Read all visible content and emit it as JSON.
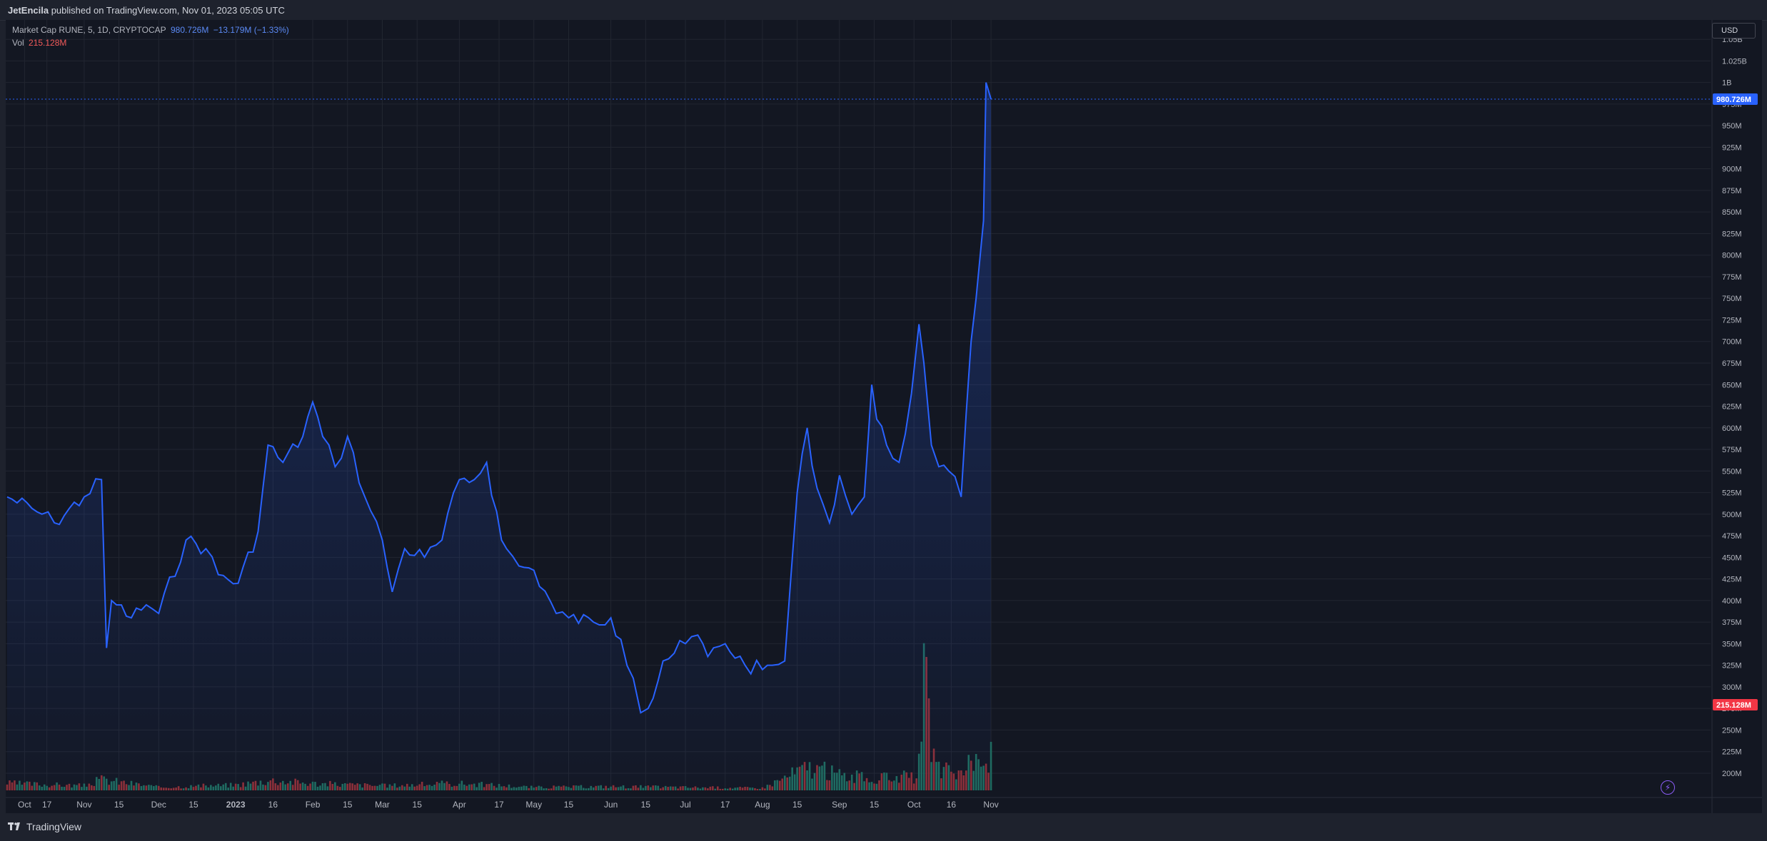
{
  "header": {
    "author": "JetEncila",
    "publish_text": " published on TradingView.com, Nov 01, 2023 05:05 UTC"
  },
  "legend": {
    "symbol": "Market Cap RUNE, 5, 1D, CRYPTOCAP",
    "value": "980.726M",
    "change": "−13.179M (−1.33%)",
    "vol_label": "Vol",
    "vol_value": "215.128M"
  },
  "currency": "USD",
  "footer": {
    "brand": "TradingView"
  },
  "colors": {
    "line": "#2962ff",
    "vol_up": "#1f6b5e",
    "vol_down": "#8e2f36",
    "price_tag": "#2962ff",
    "vol_tag": "#f23645"
  },
  "chart_data": {
    "type": "line",
    "title": "Market Cap RUNE, 5, 1D, CRYPTOCAP",
    "ylabel": "USD",
    "y_unit": "USD",
    "y_axis_ticks": [
      "1.05B",
      "1.025B",
      "1B",
      "975M",
      "950M",
      "925M",
      "900M",
      "875M",
      "850M",
      "825M",
      "800M",
      "775M",
      "750M",
      "725M",
      "700M",
      "675M",
      "650M",
      "625M",
      "600M",
      "575M",
      "550M",
      "525M",
      "500M",
      "475M",
      "450M",
      "425M",
      "400M",
      "375M",
      "350M",
      "325M",
      "300M",
      "275M",
      "250M",
      "225M",
      "200M"
    ],
    "x_axis_ticks": [
      "Oct",
      "17",
      "Nov",
      "15",
      "Dec",
      "15",
      "2023",
      "16",
      "Feb",
      "15",
      "Mar",
      "15",
      "Apr",
      "17",
      "May",
      "15",
      "Jun",
      "15",
      "Jul",
      "17",
      "Aug",
      "15",
      "Sep",
      "15",
      "Oct",
      "16",
      "Nov"
    ],
    "ylim": [
      195000000,
      1060000000
    ],
    "series": [
      {
        "name": "Market Cap RUNE",
        "x": [
          "2022-10-01",
          "2022-10-15",
          "2022-10-20",
          "2022-11-01",
          "2022-11-08",
          "2022-11-10",
          "2022-11-12",
          "2022-11-20",
          "2022-11-26",
          "2022-12-01",
          "2022-12-12",
          "2022-12-20",
          "2022-12-25",
          "2023-01-02",
          "2023-01-10",
          "2023-01-14",
          "2023-01-20",
          "2023-01-28",
          "2023-02-01",
          "2023-02-05",
          "2023-02-10",
          "2023-02-15",
          "2023-02-22",
          "2023-03-01",
          "2023-03-05",
          "2023-03-10",
          "2023-03-18",
          "2023-03-25",
          "2023-04-01",
          "2023-04-07",
          "2023-04-12",
          "2023-04-18",
          "2023-04-20",
          "2023-04-25",
          "2023-05-01",
          "2023-05-10",
          "2023-05-15",
          "2023-05-25",
          "2023-06-01",
          "2023-06-05",
          "2023-06-10",
          "2023-06-13",
          "2023-06-16",
          "2023-06-22",
          "2023-07-01",
          "2023-07-06",
          "2023-07-10",
          "2023-07-17",
          "2023-07-25",
          "2023-08-01",
          "2023-08-05",
          "2023-08-10",
          "2023-08-15",
          "2023-08-19",
          "2023-08-23",
          "2023-08-28",
          "2023-09-01",
          "2023-09-06",
          "2023-09-11",
          "2023-09-14",
          "2023-09-16",
          "2023-09-20",
          "2023-09-25",
          "2023-09-30",
          "2023-10-03",
          "2023-10-05",
          "2023-10-08",
          "2023-10-11",
          "2023-10-15",
          "2023-10-20",
          "2023-10-24",
          "2023-10-26",
          "2023-10-29",
          "2023-10-30",
          "2023-11-01"
        ],
        "values": [
          520000000,
          500000000,
          490000000,
          520000000,
          540000000,
          345000000,
          400000000,
          380000000,
          395000000,
          385000000,
          470000000,
          460000000,
          430000000,
          420000000,
          480000000,
          580000000,
          560000000,
          590000000,
          630000000,
          590000000,
          555000000,
          590000000,
          520000000,
          470000000,
          410000000,
          460000000,
          450000000,
          470000000,
          540000000,
          540000000,
          560000000,
          470000000,
          460000000,
          440000000,
          435000000,
          385000000,
          380000000,
          375000000,
          380000000,
          355000000,
          310000000,
          270000000,
          275000000,
          330000000,
          350000000,
          360000000,
          335000000,
          350000000,
          325000000,
          320000000,
          325000000,
          330000000,
          525000000,
          600000000,
          530000000,
          490000000,
          545000000,
          500000000,
          520000000,
          650000000,
          610000000,
          580000000,
          560000000,
          640000000,
          720000000,
          675000000,
          580000000,
          555000000,
          550000000,
          520000000,
          700000000,
          750000000,
          840000000,
          1000000000,
          980726000
        ]
      }
    ],
    "volume": {
      "name": "Vol",
      "last": "215.128M",
      "ylim": [
        0,
        1000000000
      ],
      "x": [
        "2022-10-01",
        "2022-11-01",
        "2022-11-08",
        "2022-12-01",
        "2023-01-01",
        "2023-01-15",
        "2023-02-01",
        "2023-03-01",
        "2023-04-01",
        "2023-05-01",
        "2023-06-01",
        "2023-07-01",
        "2023-08-01",
        "2023-08-15",
        "2023-08-20",
        "2023-09-01",
        "2023-09-15",
        "2023-09-25",
        "2023-10-01",
        "2023-10-04",
        "2023-10-05",
        "2023-10-10",
        "2023-10-20",
        "2023-10-25",
        "2023-10-30",
        "2023-11-01"
      ],
      "values": [
        45000000,
        30000000,
        70000000,
        20000000,
        35000000,
        65000000,
        45000000,
        30000000,
        45000000,
        20000000,
        25000000,
        20000000,
        15000000,
        120000000,
        150000000,
        100000000,
        70000000,
        90000000,
        75000000,
        220000000,
        700000000,
        130000000,
        110000000,
        180000000,
        200000000,
        215128000
      ],
      "up": [
        true,
        false,
        false,
        true,
        true,
        true,
        false,
        false,
        true,
        false,
        true,
        false,
        true,
        true,
        true,
        true,
        true,
        true,
        true,
        false,
        false,
        false,
        true,
        true,
        true,
        false
      ]
    }
  }
}
